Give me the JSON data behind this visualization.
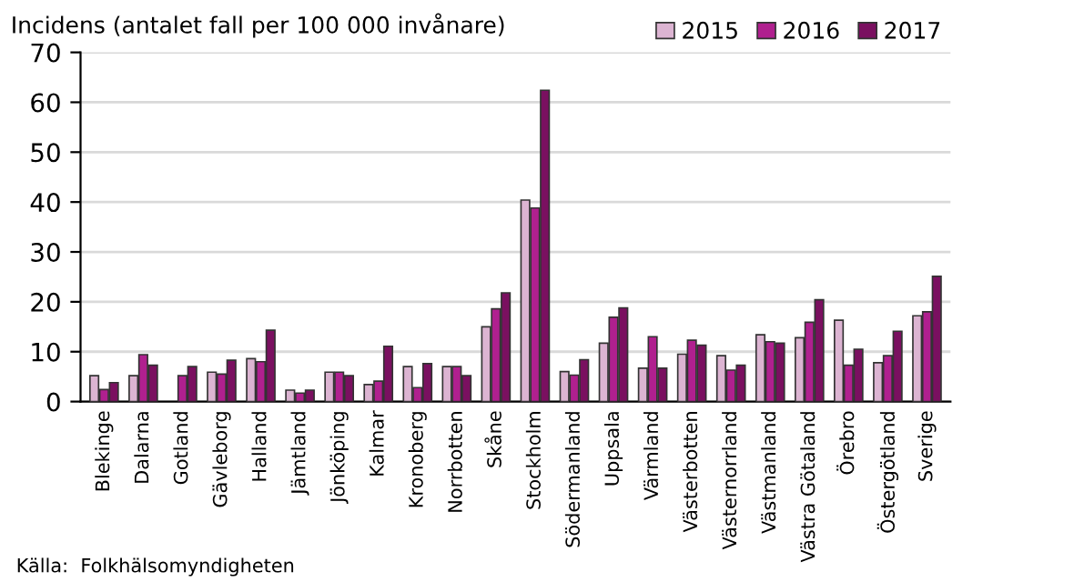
{
  "chart_data": {
    "type": "bar",
    "ylabel": "Incidens (antalet fall per 100 000 invånare)",
    "categories": [
      "Blekinge",
      "Dalarna",
      "Gotland",
      "Gävleborg",
      "Halland",
      "Jämtland",
      "Jönköping",
      "Kalmar",
      "Kronoberg",
      "Norrbotten",
      "Skåne",
      "Stockholm",
      "Södermanland",
      "Uppsala",
      "Värmland",
      "Västerbotten",
      "Västernorrland",
      "Västmanland",
      "Västra Götaland",
      "Örebro",
      "Östergötland",
      "Sverige"
    ],
    "series": [
      {
        "name": "2015",
        "color": "#dcb4d2",
        "values": [
          5.2,
          5.2,
          null,
          5.9,
          8.6,
          2.3,
          5.9,
          3.4,
          7.0,
          7.0,
          15.0,
          40.4,
          6.0,
          11.7,
          6.7,
          9.5,
          9.2,
          13.4,
          12.8,
          16.3,
          7.8,
          17.2
        ]
      },
      {
        "name": "2016",
        "color": "#b0208f",
        "values": [
          2.4,
          9.4,
          5.2,
          5.5,
          8.0,
          1.7,
          5.9,
          4.1,
          2.8,
          7.0,
          18.6,
          38.8,
          5.3,
          16.9,
          13.0,
          12.3,
          6.3,
          12.0,
          15.9,
          7.3,
          9.2,
          18.0
        ]
      },
      {
        "name": "2017",
        "color": "#7a1060",
        "values": [
          3.8,
          7.3,
          7.0,
          8.3,
          14.3,
          2.3,
          5.2,
          11.1,
          7.6,
          5.2,
          21.8,
          62.4,
          8.4,
          18.8,
          6.7,
          11.3,
          7.3,
          11.7,
          20.4,
          10.5,
          14.1,
          25.1
        ]
      }
    ],
    "ylim": [
      0,
      70
    ],
    "yticks": [
      0,
      10,
      20,
      30,
      40,
      50,
      60,
      70
    ],
    "grid": "y",
    "legend": "top right",
    "annotations": [
      "Källa:  Folkhälsomyndigheten"
    ]
  }
}
